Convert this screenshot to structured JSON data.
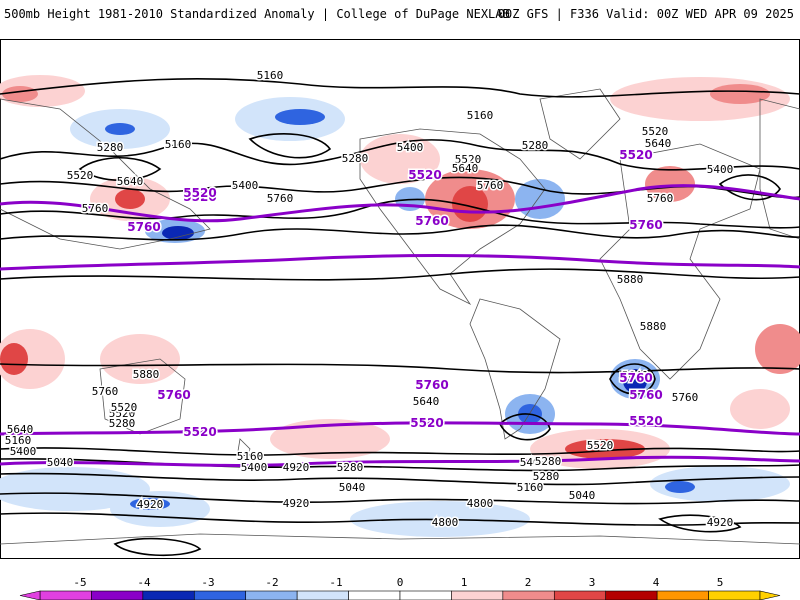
{
  "header": {
    "left": "500mb Height 1981-2010 Standardized Anomaly | College of DuPage NEXLAB",
    "right": "00Z GFS | F336 Valid: 00Z WED APR 09 2025"
  },
  "colors": {
    "anomaly_scale": [
      "#e040e0",
      "#8a00c8",
      "#0a28b4",
      "#2f64e0",
      "#8cb4f0",
      "#d2e4fa",
      "#ffffff",
      "#ffffff",
      "#fcd2d2",
      "#f08c8c",
      "#e04646",
      "#b40000",
      "#ff9600",
      "#ffd000"
    ],
    "height_contour": "#000000",
    "highlight_contour": "#8a00c8",
    "land_outline": "#555555"
  },
  "colorbar": {
    "ticks": [
      "-5",
      "-4",
      "-3",
      "-2",
      "-1",
      "0",
      "1",
      "2",
      "3",
      "4",
      "5"
    ]
  },
  "contour_labels": {
    "black": [
      "5160",
      "5160",
      "5160",
      "5280",
      "5280",
      "5280",
      "5400",
      "5400",
      "5400",
      "5520",
      "5520",
      "5520",
      "5640",
      "5640",
      "5640",
      "5760",
      "5760",
      "5760",
      "5760",
      "5880",
      "5880",
      "5880",
      "5520",
      "5280",
      "5160",
      "5040",
      "4920",
      "4800",
      "4800",
      "4920",
      "5400",
      "5160",
      "5280",
      "4920",
      "5040",
      "5400",
      "5280",
      "5520",
      "5040",
      "5160",
      "5760",
      "5640",
      "5400",
      "5640",
      "5520",
      "5280",
      "4920",
      "5760",
      "5640"
    ],
    "purple": [
      "5520",
      "5520",
      "5520",
      "5520",
      "5760",
      "5760",
      "5760",
      "5760",
      "5760",
      "5760",
      "5760",
      "5520",
      "5520",
      "5520"
    ]
  }
}
